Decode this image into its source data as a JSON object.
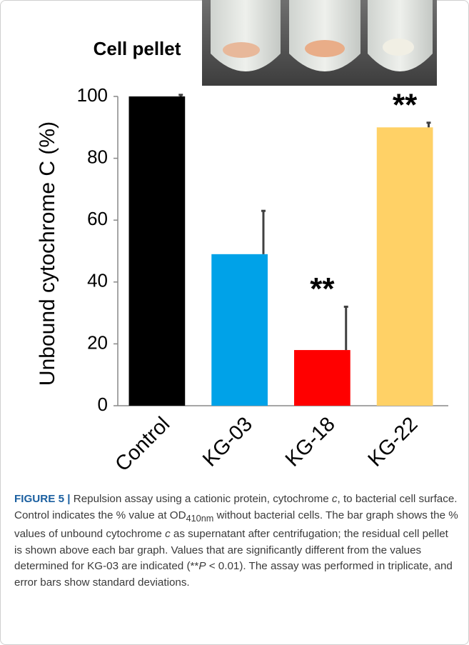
{
  "chart_data": {
    "type": "bar",
    "image_label": "Cell pellet",
    "y_label": "Unbound cytochrome C (%)",
    "categories": [
      "Control",
      "KG-03",
      "KG-18",
      "KG-22"
    ],
    "values": [
      100,
      49,
      18,
      90
    ],
    "errors": [
      0.5,
      14,
      14,
      1.5
    ],
    "colors": [
      "#000000",
      "#00a2e8",
      "#ff0000",
      "#ffd166"
    ],
    "annotations": [
      null,
      null,
      "**",
      "**"
    ],
    "ylim": [
      0,
      100
    ],
    "yticks": [
      0,
      20,
      40,
      60,
      80,
      100
    ]
  },
  "caption": {
    "label": "FIGURE 5 |",
    "segments": [
      "Repulsion assay using a cationic protein, cytochrome ",
      "c",
      ", to bacterial cell surface. Control indicates the % value at OD",
      "410nm",
      " without bacterial cells. The bar graph shows the % values of unbound cytochrome ",
      "c",
      " as supernatant after centrifugation; the residual cell pellet is shown above each bar graph. Values that are significantly different from the values determined for KG-03 are indicated (**",
      "P",
      " < 0.01). The assay was performed in triplicate, and error bars show standard deviations."
    ]
  }
}
